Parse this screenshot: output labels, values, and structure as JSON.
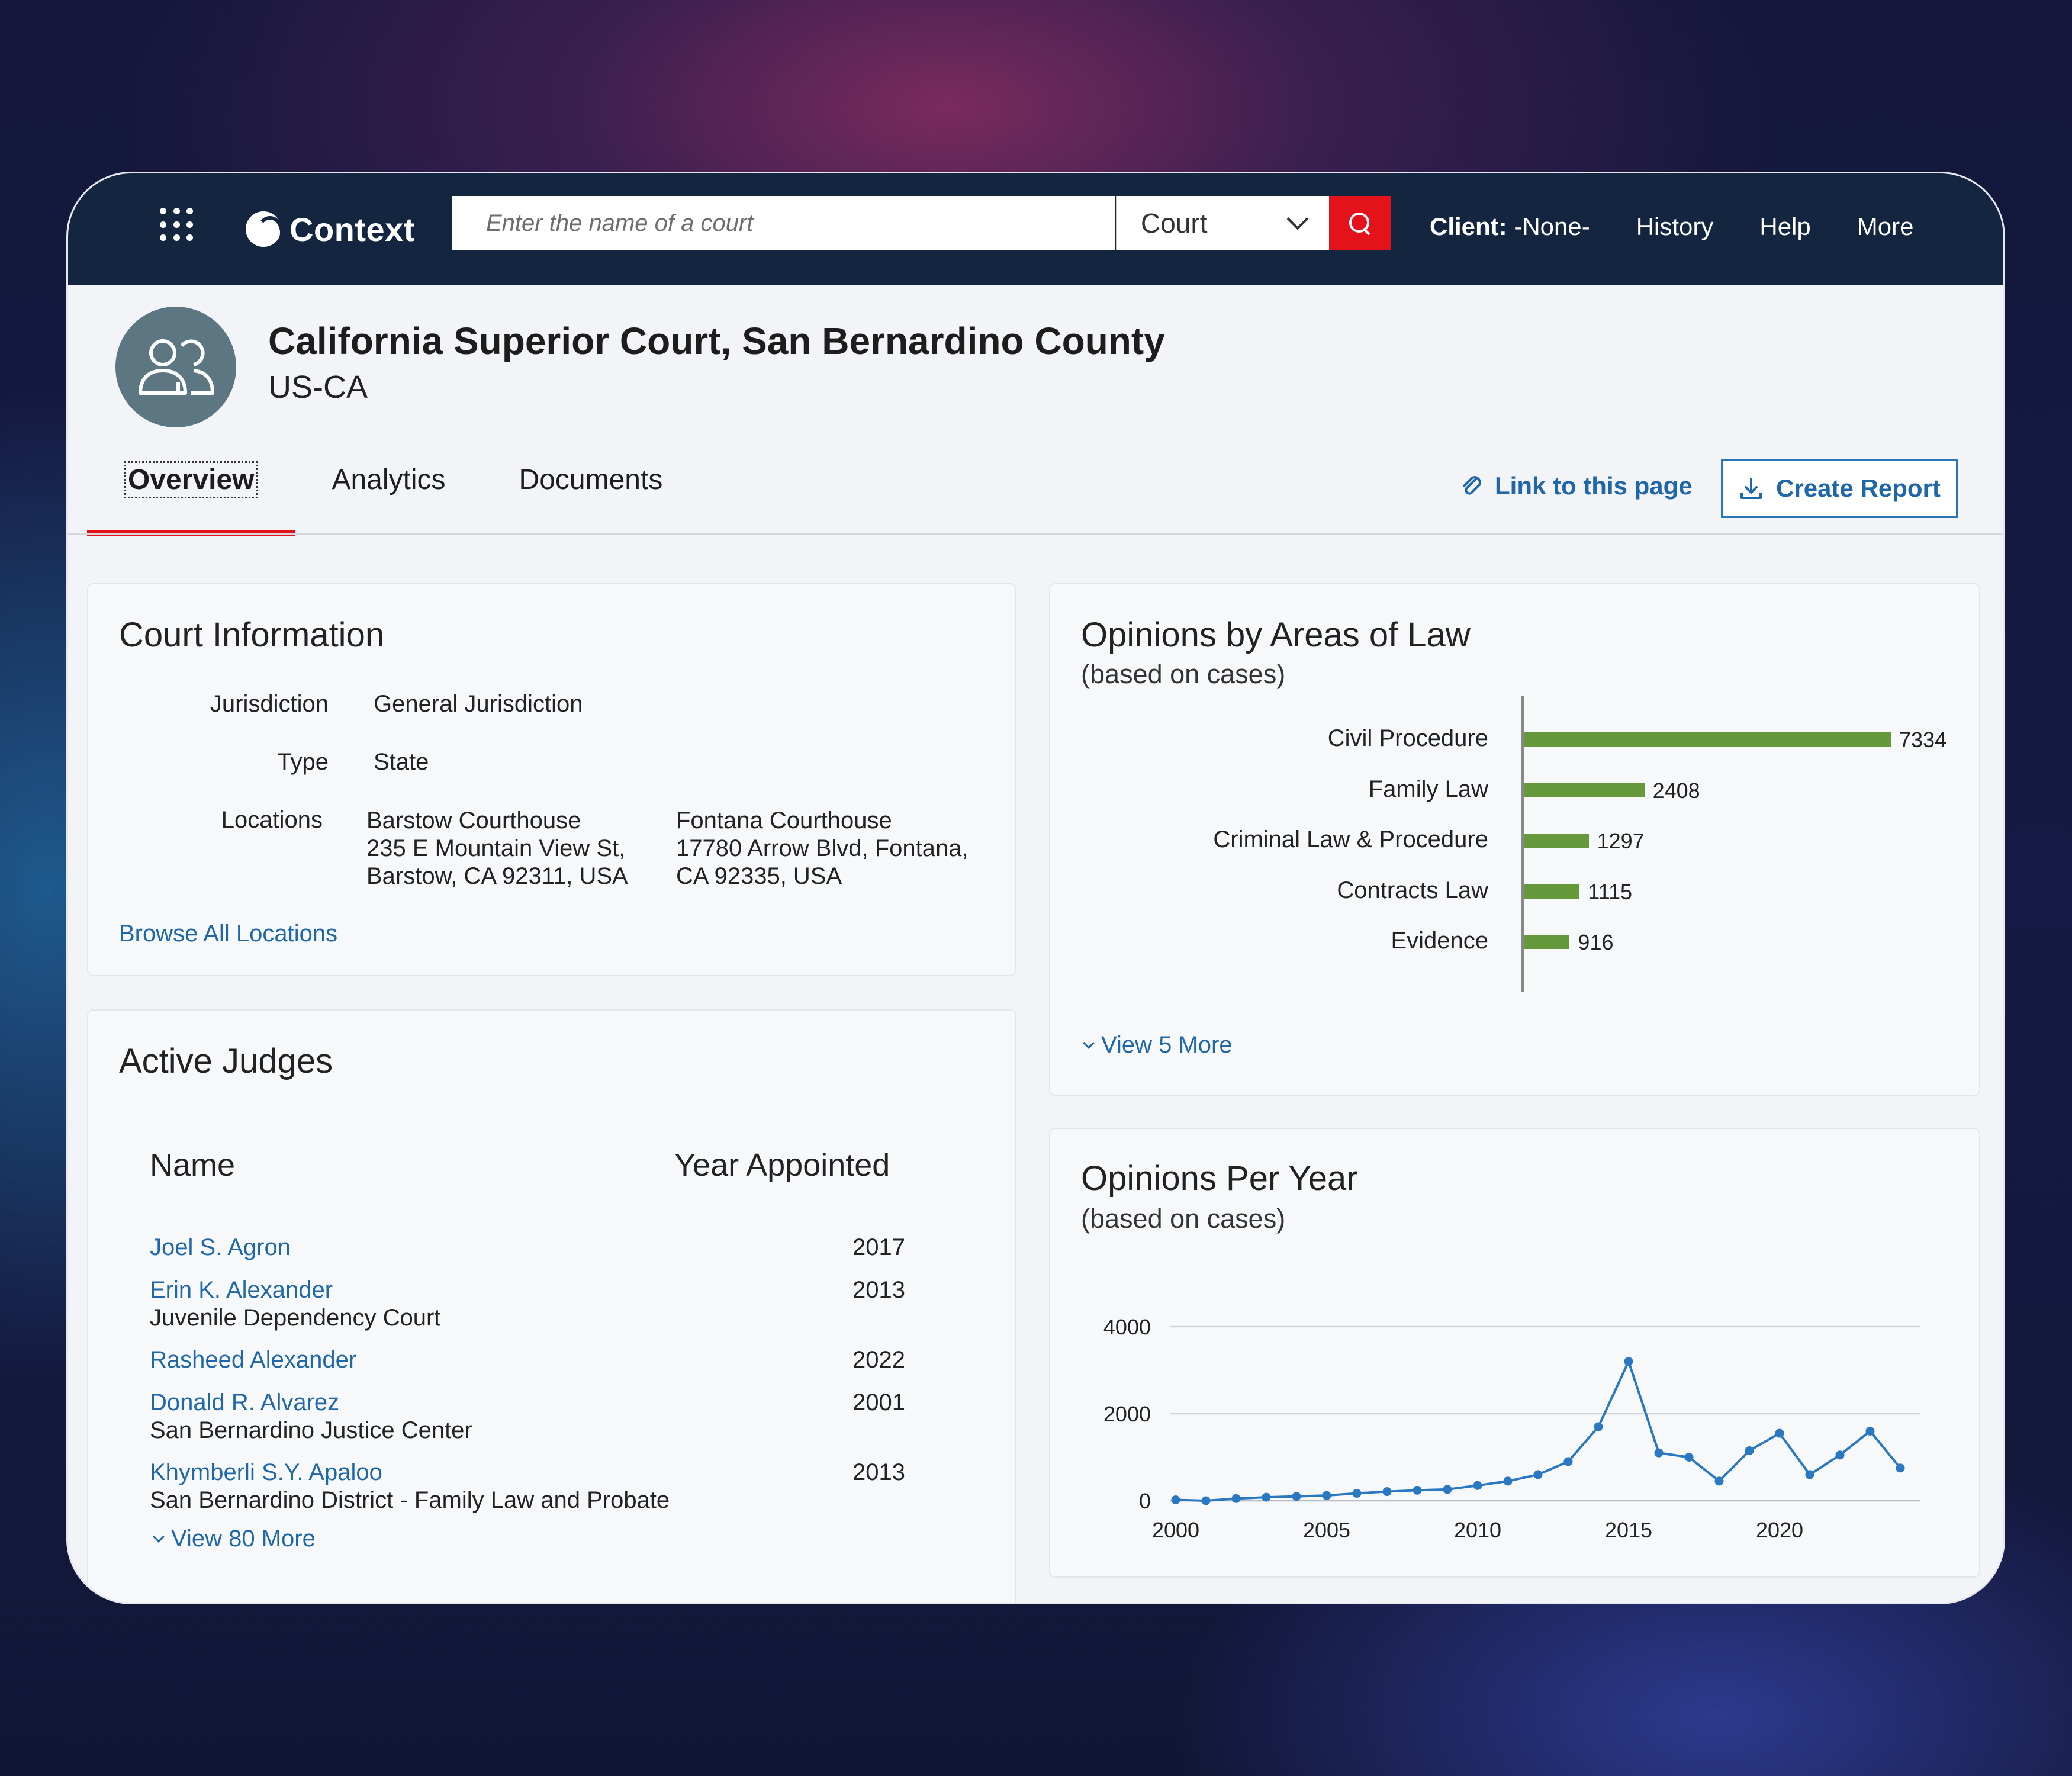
{
  "app": {
    "name": "Context"
  },
  "search": {
    "placeholder": "Enter the name of a court",
    "type_selected": "Court"
  },
  "top_links": {
    "client_label": "Client:",
    "client_value": "-None-",
    "history": "History",
    "help": "Help",
    "more": "More"
  },
  "court": {
    "name": "California Superior Court, San Bernardino County",
    "region": "US-CA"
  },
  "tabs": [
    {
      "label": "Overview"
    },
    {
      "label": "Analytics"
    },
    {
      "label": "Documents"
    }
  ],
  "actions": {
    "link_page": "Link to this page",
    "create_report": "Create Report"
  },
  "court_info": {
    "title": "Court Information",
    "jurisdiction_label": "Jurisdiction",
    "jurisdiction_value": "General Jurisdiction",
    "type_label": "Type",
    "type_value": "State",
    "locations_label": "Locations",
    "locations": [
      {
        "name": "Barstow Courthouse",
        "line1": "235 E Mountain View St,",
        "line2": "Barstow, CA 92311, USA"
      },
      {
        "name": "Fontana Courthouse",
        "line1": "17780 Arrow Blvd, Fontana,",
        "line2": "CA 92335, USA"
      }
    ],
    "browse_link": "Browse All Locations"
  },
  "judges": {
    "title": "Active Judges",
    "col_name": "Name",
    "col_year": "Year Appointed",
    "rows": [
      {
        "name": "Joel S. Agron",
        "sub": "",
        "year": "2017"
      },
      {
        "name": "Erin K. Alexander",
        "sub": "Juvenile Dependency Court",
        "year": "2013"
      },
      {
        "name": "Rasheed Alexander",
        "sub": "",
        "year": "2022"
      },
      {
        "name": "Donald R. Alvarez",
        "sub": "San Bernardino Justice Center",
        "year": "2001"
      },
      {
        "name": "Khymberli S.Y. Apaloo",
        "sub": "San Bernardino District - Family Law and Probate",
        "year": "2013"
      }
    ],
    "view_more": "View 80 More"
  },
  "areas_of_law": {
    "title": "Opinions by Areas of Law",
    "subtitle": "(based on cases)",
    "view_more": "View 5 More"
  },
  "per_year": {
    "title": "Opinions Per Year",
    "subtitle": "(based on cases)"
  },
  "colors": {
    "nav_bg": "#14253f",
    "accent_red": "#e3121b",
    "link_blue": "#1f67a8",
    "bar_green": "#65993c",
    "line_blue": "#2a78c2"
  },
  "chart_data": [
    {
      "type": "bar",
      "orientation": "horizontal",
      "title": "Opinions by Areas of Law",
      "subtitle": "(based on cases)",
      "categories": [
        "Civil Procedure",
        "Family Law",
        "Criminal Law & Procedure",
        "Contracts Law",
        "Evidence"
      ],
      "values": [
        7334,
        2408,
        1297,
        1115,
        916
      ],
      "data_labels": [
        "7334",
        "2408",
        "1297",
        "1115",
        "916"
      ]
    },
    {
      "type": "line",
      "title": "Opinions Per Year",
      "subtitle": "(based on cases)",
      "x": [
        2000,
        2001,
        2002,
        2003,
        2004,
        2005,
        2006,
        2007,
        2008,
        2009,
        2010,
        2011,
        2012,
        2013,
        2014,
        2015,
        2016,
        2017,
        2018,
        2019,
        2020,
        2021,
        2022,
        2023
      ],
      "y": [
        20,
        0,
        50,
        80,
        100,
        120,
        170,
        210,
        240,
        260,
        350,
        450,
        600,
        900,
        1700,
        3200,
        1100,
        1000,
        450,
        1150,
        1550,
        600,
        1050,
        1600
      ],
      "x_last": 2024,
      "y_last": 750,
      "xticks": [
        "2000",
        "2005",
        "2010",
        "2015",
        "2020"
      ],
      "yticks": [
        "0",
        "2000",
        "4000"
      ],
      "ylim": [
        0,
        4000
      ],
      "grid": true
    }
  ]
}
